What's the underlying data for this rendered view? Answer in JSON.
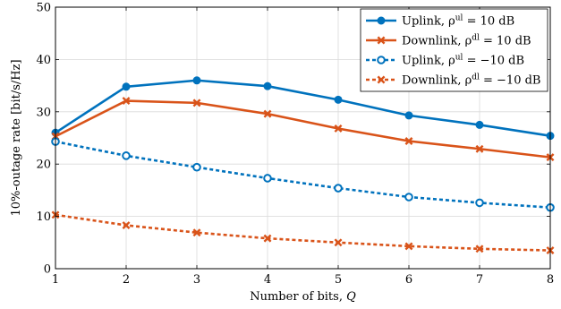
{
  "chart_data": {
    "type": "line",
    "xlabel": "Number of bits, Q",
    "ylabel": "10%-outage rate [bit/s/Hz]",
    "xlim": [
      1,
      8
    ],
    "ylim": [
      0,
      50
    ],
    "x_ticks": [
      1,
      2,
      3,
      4,
      5,
      6,
      7,
      8
    ],
    "y_ticks": [
      0,
      10,
      20,
      30,
      40,
      50
    ],
    "grid": true,
    "legend_position": "top-right",
    "x": [
      1,
      2,
      3,
      4,
      5,
      6,
      7,
      8
    ],
    "series": [
      {
        "name": "Uplink, ρ^ul = 10 dB",
        "legend_parts": {
          "prefix": "Uplink, ρ",
          "sup": "ul",
          "suffix": " = 10 dB"
        },
        "color": "#0072BD",
        "line_style": "solid",
        "marker": "filled-circle",
        "values": [
          26.0,
          34.8,
          36.0,
          34.9,
          32.3,
          29.3,
          27.5,
          25.4
        ]
      },
      {
        "name": "Downlink, ρ^dl = 10 dB",
        "legend_parts": {
          "prefix": "Downlink, ρ",
          "sup": "dl",
          "suffix": " = 10 dB"
        },
        "color": "#D95319",
        "line_style": "solid",
        "marker": "x",
        "values": [
          25.3,
          32.1,
          31.7,
          29.6,
          26.8,
          24.4,
          22.9,
          21.3
        ]
      },
      {
        "name": "Uplink, ρ^ul = −10 dB",
        "legend_parts": {
          "prefix": "Uplink, ρ",
          "sup": "ul",
          "suffix": " = −10 dB"
        },
        "color": "#0072BD",
        "line_style": "dashed",
        "marker": "open-circle",
        "values": [
          24.3,
          21.6,
          19.4,
          17.3,
          15.4,
          13.7,
          12.6,
          11.7
        ]
      },
      {
        "name": "Downlink, ρ^dl = −10 dB",
        "legend_parts": {
          "prefix": "Downlink, ρ",
          "sup": "dl",
          "suffix": " = −10 dB"
        },
        "color": "#D95319",
        "line_style": "dashed",
        "marker": "x",
        "values": [
          10.3,
          8.3,
          6.9,
          5.8,
          5.0,
          4.3,
          3.8,
          3.5
        ]
      }
    ]
  }
}
